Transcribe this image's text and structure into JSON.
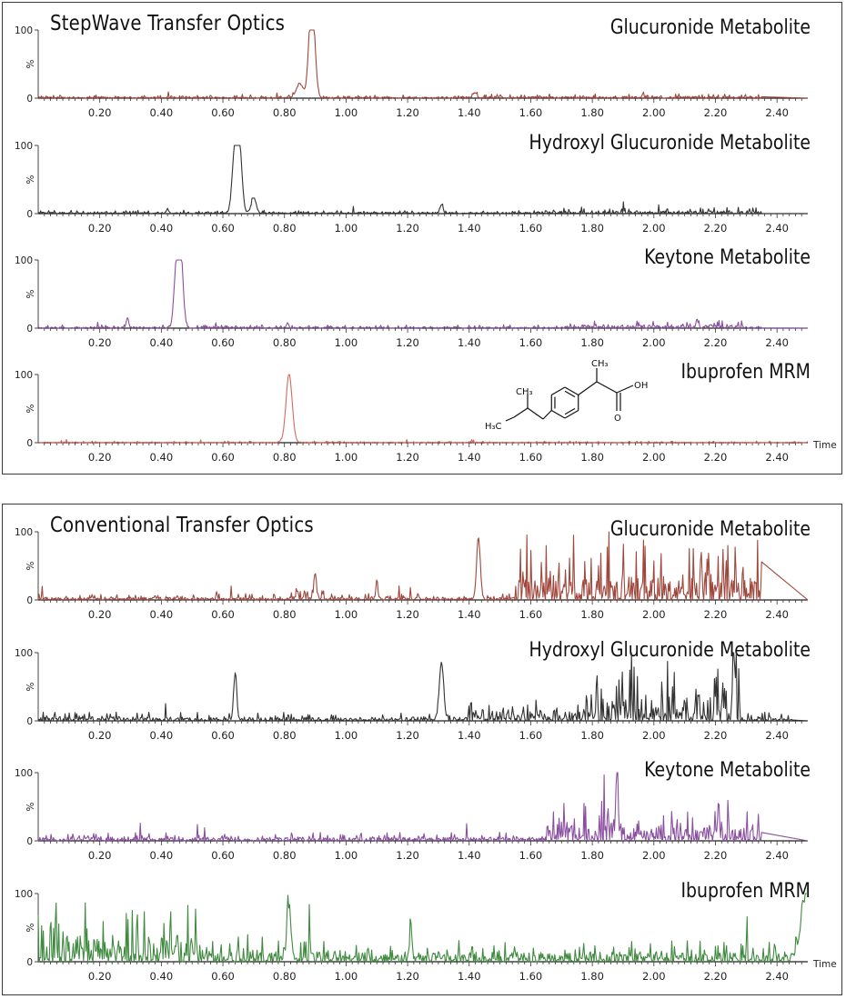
{
  "panels": [
    {
      "title": "StepWave Transfer Optics",
      "traces": [
        {
          "name": "Glucuronide Metabolite",
          "color": "#a0473c",
          "peaks": [
            [
              0.85,
              20,
              0.012
            ],
            [
              0.885,
              100,
              0.008
            ],
            [
              0.895,
              70,
              0.008
            ],
            [
              1.42,
              8,
              0.005
            ]
          ],
          "noise": 3,
          "noise_region": [
            [
              1.4,
              2.35,
              4
            ]
          ],
          "end": 2.35
        },
        {
          "name": "Hydroxyl Glucuronide Metabolite",
          "color": "#333333",
          "peaks": [
            [
              0.64,
              100,
              0.009
            ],
            [
              0.655,
              80,
              0.008
            ],
            [
              0.7,
              22,
              0.008
            ],
            [
              0.42,
              6,
              0.004
            ],
            [
              1.31,
              13,
              0.005
            ]
          ],
          "noise": 3,
          "noise_region": [
            [
              1.7,
              2.35,
              6
            ]
          ],
          "end": 2.35
        },
        {
          "name": "Keytone Metabolite",
          "color": "#8a4fa0",
          "peaks": [
            [
              0.45,
              100,
              0.008
            ],
            [
              0.465,
              90,
              0.007
            ],
            [
              0.29,
              15,
              0.004
            ],
            [
              0.81,
              8,
              0.003
            ],
            [
              2.14,
              14,
              0.003
            ]
          ],
          "noise": 3,
          "noise_region": [
            [
              1.7,
              2.3,
              7
            ]
          ],
          "end": 2.35
        },
        {
          "name": "Ibuprofen MRM",
          "color": "#d46a5e",
          "peaks": [
            [
              0.815,
              100,
              0.01
            ]
          ],
          "noise": 1.5,
          "noise_region": [],
          "end": 2.5
        }
      ]
    },
    {
      "title": "Conventional Transfer Optics",
      "traces": [
        {
          "name": "Glucuronide Metabolite",
          "color": "#a0473c",
          "peaks": [
            [
              0.9,
              35,
              0.004
            ],
            [
              1.43,
              90,
              0.006
            ],
            [
              1.1,
              30,
              0.003
            ]
          ],
          "noise": 6,
          "noise_region": [
            [
              0.82,
              0.93,
              20
            ],
            [
              1.55,
              2.35,
              55
            ]
          ],
          "end": 2.35
        },
        {
          "name": "Hydroxyl Glucuronide Metabolite",
          "color": "#333333",
          "peaks": [
            [
              0.64,
              70,
              0.005
            ],
            [
              1.31,
              85,
              0.007
            ],
            [
              2.26,
              95,
              0.004
            ]
          ],
          "noise": 8,
          "noise_region": [
            [
              1.4,
              1.78,
              20
            ],
            [
              1.78,
              2.28,
              55
            ]
          ],
          "end": 2.45
        },
        {
          "name": "Keytone Metabolite",
          "color": "#8a4fa0",
          "peaks": [
            [
              1.88,
              100,
              0.004
            ],
            [
              2.21,
              58,
              0.003
            ]
          ],
          "noise": 8,
          "noise_region": [
            [
              1.65,
              1.95,
              40
            ],
            [
              1.95,
              2.35,
              28
            ]
          ],
          "end": 2.35
        },
        {
          "name": "Ibuprofen MRM",
          "color": "#3f8a3f",
          "peaks": [
            [
              0.815,
              80,
              0.006
            ],
            [
              1.21,
              50,
              0.003
            ],
            [
              2.5,
              100,
              0.02
            ]
          ],
          "noise": 20,
          "noise_region": [
            [
              0.0,
              0.55,
              55
            ],
            [
              0.55,
              1.0,
              25
            ],
            [
              1.0,
              1.75,
              6
            ],
            [
              1.75,
              2.42,
              18
            ]
          ],
          "end": 2.5
        }
      ]
    }
  ],
  "chart_data": {
    "type": "line",
    "x_ticks": [
      "0.20",
      "0.40",
      "0.60",
      "0.80",
      "1.00",
      "1.20",
      "1.40",
      "1.60",
      "1.80",
      "2.00",
      "2.20",
      "2.40"
    ],
    "x_tick_values": [
      0.2,
      0.4,
      0.6,
      0.8,
      1.0,
      1.2,
      1.4,
      1.6,
      1.8,
      2.0,
      2.2,
      2.4
    ],
    "xlim": [
      0.0,
      2.5
    ],
    "ylim": [
      0,
      100
    ],
    "y_ticks": [
      "100",
      "0"
    ],
    "ylabel": "%",
    "xlabel": "Time"
  },
  "structure": {
    "ch3_label": "CH₃",
    "h3c_label": "H₃C",
    "oh_label": "OH",
    "o_label": "O"
  }
}
